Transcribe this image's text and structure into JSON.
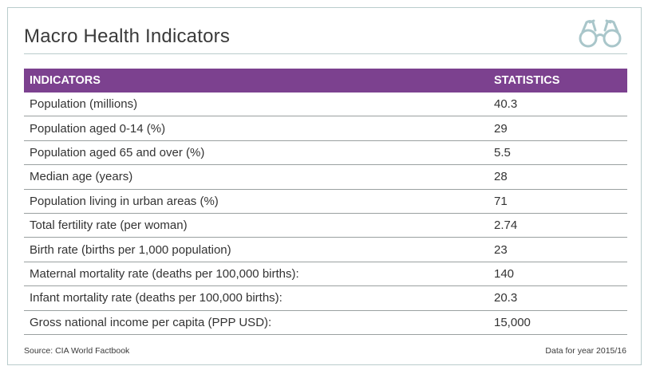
{
  "title": "Macro Health Indicators",
  "header_icon": "binoculars-icon",
  "colors": {
    "header_bg": "#7c418f",
    "border": "#b9cccc",
    "icon": "#a9c6ca"
  },
  "chart_data": {
    "type": "table",
    "columns": [
      "INDICATORS",
      "STATISTICS"
    ],
    "rows": [
      [
        "Population (millions)",
        "40.3"
      ],
      [
        "Population aged 0-14 (%)",
        "29"
      ],
      [
        "Population aged 65 and over (%)",
        "5.5"
      ],
      [
        "Median age (years)",
        "28"
      ],
      [
        "Population living in urban areas (%)",
        "71"
      ],
      [
        "Total fertility rate (per woman)",
        "2.74"
      ],
      [
        "Birth rate (births per 1,000 population)",
        "23"
      ],
      [
        "Maternal mortality rate (deaths per 100,000 births):",
        "140"
      ],
      [
        "Infant mortality rate (deaths per 100,000 births):",
        "20.3"
      ],
      [
        "Gross national income per capita (PPP USD):",
        "15,000"
      ]
    ]
  },
  "footer": {
    "source": "Source: CIA World Factbook",
    "note": "Data for year 2015/16"
  }
}
